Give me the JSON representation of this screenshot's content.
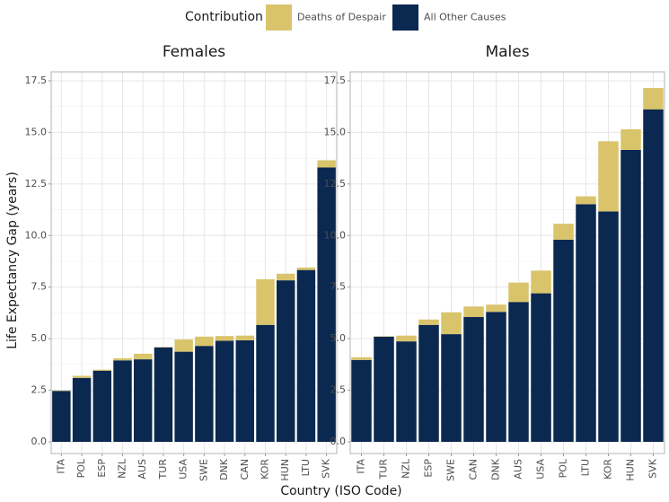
{
  "chart_data": {
    "type": "bar",
    "stacked": true,
    "grid": true,
    "legend_title": "Contribution",
    "xlabel": "Country (ISO Code)",
    "ylabel": "Life Expectancy Gap (years)",
    "ylim": [
      0,
      17.5
    ],
    "yticks": [
      {
        "value": 0,
        "label": "0.0"
      },
      2.5,
      {
        "value": 5,
        "label": "5.0"
      },
      7.5,
      {
        "value": 10,
        "label": "10.0"
      },
      12.5,
      {
        "value": 15,
        "label": "15.0"
      },
      17.5
    ],
    "series": [
      {
        "name": "Deaths of Despair",
        "color": "#d9c46b"
      },
      {
        "name": "All Other Causes",
        "color": "#0b2850"
      }
    ],
    "facets": [
      {
        "title": "Females",
        "categories": [
          "ITA",
          "POL",
          "ESP",
          "NZL",
          "AUS",
          "TUR",
          "USA",
          "SWE",
          "DNK",
          "CAN",
          "KOR",
          "HUN",
          "LTU",
          "SVK"
        ],
        "series": [
          {
            "values": [
              0.02,
              0.1,
              0.05,
              0.1,
              0.27,
              0.02,
              0.59,
              0.45,
              0.23,
              0.23,
              2.21,
              0.32,
              0.12,
              0.35
            ]
          },
          {
            "values": [
              2.47,
              3.1,
              3.45,
              3.95,
              4.0,
              4.58,
              4.37,
              4.65,
              4.9,
              4.92,
              5.67,
              7.83,
              8.33,
              13.3
            ]
          }
        ]
      },
      {
        "title": "Males",
        "categories": [
          "ITA",
          "TUR",
          "NZL",
          "ESP",
          "SWE",
          "CAN",
          "DNK",
          "AUS",
          "USA",
          "POL",
          "LTU",
          "KOR",
          "HUN",
          "SVK"
        ],
        "series": [
          {
            "values": [
              0.13,
              0.02,
              0.28,
              0.26,
              1.06,
              0.51,
              0.35,
              0.94,
              1.1,
              0.77,
              0.38,
              3.4,
              1.0,
              1.03
            ]
          },
          {
            "values": [
              3.97,
              5.1,
              4.87,
              5.67,
              5.22,
              6.05,
              6.3,
              6.78,
              7.2,
              9.8,
              11.52,
              11.17,
              14.15,
              16.12
            ]
          }
        ]
      }
    ]
  }
}
